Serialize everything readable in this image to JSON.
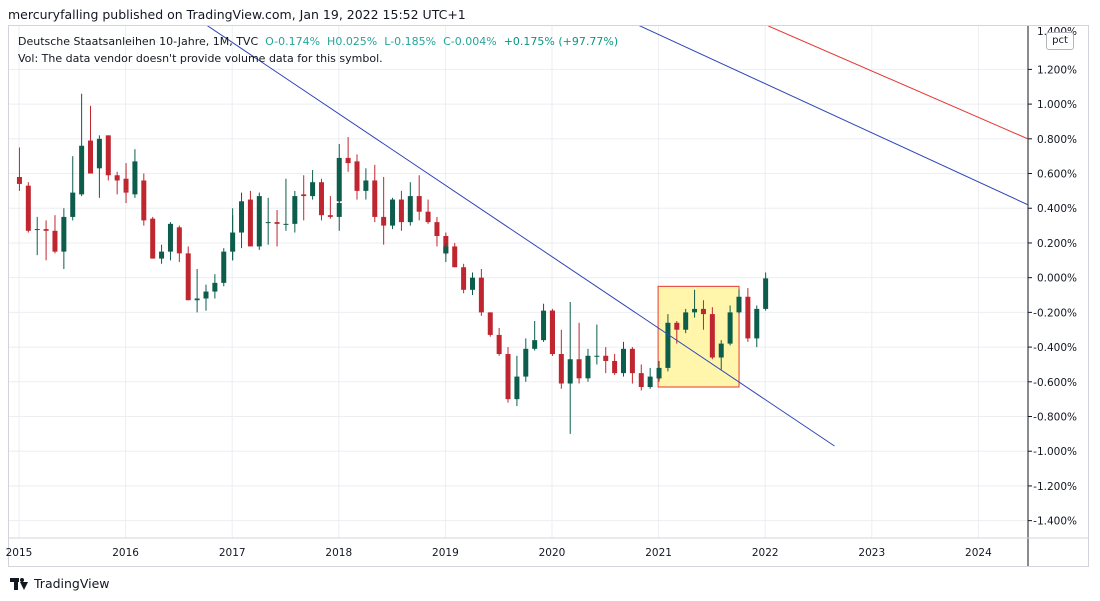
{
  "header": {
    "publish_line": "mercuryfalling published on TradingView.com, Jan 19, 2022 15:52 UTC+1"
  },
  "legend": {
    "symbol": "Deutsche Staatsanleihen 10-Jahre, 1M, TVC",
    "open": "O-0.174%",
    "high": "H0.025%",
    "low": "L-0.185%",
    "close": "C-0.004%",
    "change": "+0.175% (+97.77%)",
    "volume_note": "Vol: The data vendor doesn't provide volume data for this symbol."
  },
  "axis_badge": "pct",
  "footer": {
    "brand": "TradingView"
  },
  "colors": {
    "up": "#0c5d4c",
    "down": "#bf2630",
    "trendline_blue": "#2e46b8",
    "trendline_red": "#e53935",
    "highlight_fill": "#fff59d",
    "highlight_border": "#e53935",
    "grid": "#eceef2"
  },
  "chart_data": {
    "type": "candlestick",
    "timeframe": "1M",
    "ylim": [
      -1.5,
      1.45
    ],
    "y_ticks": [
      1.2,
      1.0,
      0.8,
      0.6,
      0.4,
      0.2,
      0.0,
      -0.2,
      -0.4,
      -0.6,
      -0.8,
      -1.0,
      -1.2,
      -1.4
    ],
    "y_tick_labels": [
      "1.200%",
      "1.000%",
      "0.800%",
      "0.600%",
      "0.400%",
      "0.200%",
      "0.000%",
      "-0.200%",
      "-0.400%",
      "-0.600%",
      "-0.800%",
      "-1.000%",
      "-1.200%",
      "-1.400%"
    ],
    "y_top_partial_label": "1.400%",
    "x_ticks": [
      "2015",
      "2016",
      "2017",
      "2018",
      "2019",
      "2020",
      "2021",
      "2022",
      "2023",
      "2024"
    ],
    "x_range": [
      2015.0,
      2024.75
    ],
    "grid": true,
    "candles": [
      {
        "t": "2015-01",
        "o": 0.58,
        "h": 0.75,
        "l": 0.5,
        "c": 0.54
      },
      {
        "t": "2015-02",
        "o": 0.53,
        "h": 0.55,
        "l": 0.26,
        "c": 0.27
      },
      {
        "t": "2015-03",
        "o": 0.28,
        "h": 0.35,
        "l": 0.13,
        "c": 0.28
      },
      {
        "t": "2015-04",
        "o": 0.28,
        "h": 0.33,
        "l": 0.1,
        "c": 0.27
      },
      {
        "t": "2015-05",
        "o": 0.27,
        "h": 0.36,
        "l": 0.14,
        "c": 0.15
      },
      {
        "t": "2015-06",
        "o": 0.15,
        "h": 0.4,
        "l": 0.05,
        "c": 0.35
      },
      {
        "t": "2015-07",
        "o": 0.35,
        "h": 0.7,
        "l": 0.33,
        "c": 0.49
      },
      {
        "t": "2015-08",
        "o": 0.48,
        "h": 1.06,
        "l": 0.47,
        "c": 0.76
      },
      {
        "t": "2015-09",
        "o": 0.79,
        "h": 0.99,
        "l": 0.61,
        "c": 0.6
      },
      {
        "t": "2015-10",
        "o": 0.63,
        "h": 0.82,
        "l": 0.46,
        "c": 0.8
      },
      {
        "t": "2015-11",
        "o": 0.82,
        "h": 0.82,
        "l": 0.56,
        "c": 0.59
      },
      {
        "t": "2015-12",
        "o": 0.59,
        "h": 0.61,
        "l": 0.48,
        "c": 0.56
      },
      {
        "t": "2015-13",
        "o": 0.57,
        "h": 0.66,
        "l": 0.43,
        "c": 0.5
      },
      {
        "t": "2016-01",
        "o": 0.5,
        "h": 0.62,
        "l": 0.47,
        "c": 0.49
      },
      {
        "t": "2016-02",
        "o": 0.48,
        "h": 0.74,
        "l": 0.46,
        "c": 0.67
      },
      {
        "t": "2016-03",
        "o": 0.56,
        "h": 0.6,
        "l": 0.3,
        "c": 0.33
      },
      {
        "t": "2016-04",
        "o": 0.34,
        "h": 0.35,
        "l": 0.11,
        "c": 0.11
      },
      {
        "t": "2016-05",
        "o": 0.11,
        "h": 0.19,
        "l": 0.08,
        "c": 0.15
      },
      {
        "t": "2016-06",
        "o": 0.15,
        "h": 0.32,
        "l": 0.1,
        "c": 0.31
      },
      {
        "t": "2016-07",
        "o": 0.29,
        "h": 0.3,
        "l": 0.09,
        "c": 0.14
      },
      {
        "t": "2016-08",
        "o": 0.14,
        "h": 0.18,
        "l": -0.13,
        "c": -0.13
      },
      {
        "t": "2016-09",
        "o": -0.13,
        "h": 0.05,
        "l": -0.2,
        "c": -0.12
      },
      {
        "t": "2016-10",
        "o": -0.12,
        "h": -0.04,
        "l": -0.19,
        "c": -0.08
      },
      {
        "t": "2016-11",
        "o": -0.08,
        "h": 0.02,
        "l": -0.12,
        "c": -0.03
      },
      {
        "t": "2016-12",
        "o": -0.03,
        "h": 0.17,
        "l": -0.05,
        "c": 0.15
      },
      {
        "t": "2016-13",
        "o": 0.16,
        "h": 0.4,
        "l": 0.1,
        "c": 0.16
      },
      {
        "t": "2017-01",
        "o": 0.15,
        "h": 0.36,
        "l": 0.1,
        "c": 0.26
      },
      {
        "t": "2017-02",
        "o": 0.26,
        "h": 0.49,
        "l": 0.17,
        "c": 0.44
      },
      {
        "t": "2017-03",
        "o": 0.45,
        "h": 0.5,
        "l": 0.18,
        "c": 0.18
      },
      {
        "t": "2017-04",
        "o": 0.18,
        "h": 0.49,
        "l": 0.16,
        "c": 0.47
      },
      {
        "t": "2017-05",
        "o": 0.32,
        "h": 0.46,
        "l": 0.19,
        "c": 0.32
      },
      {
        "t": "2017-06",
        "o": 0.32,
        "h": 0.39,
        "l": 0.18,
        "c": 0.31
      },
      {
        "t": "2017-07",
        "o": 0.31,
        "h": 0.57,
        "l": 0.27,
        "c": 0.31
      },
      {
        "t": "2017-08",
        "o": 0.31,
        "h": 0.5,
        "l": 0.26,
        "c": 0.47
      },
      {
        "t": "2017-09",
        "o": 0.48,
        "h": 0.59,
        "l": 0.33,
        "c": 0.47
      },
      {
        "t": "2017-10",
        "o": 0.47,
        "h": 0.62,
        "l": 0.45,
        "c": 0.55
      },
      {
        "t": "2017-11",
        "o": 0.55,
        "h": 0.57,
        "l": 0.33,
        "c": 0.36
      },
      {
        "t": "2017-12",
        "o": 0.36,
        "h": 0.47,
        "l": 0.34,
        "c": 0.35
      },
      {
        "t": "2017-13",
        "o": 0.35,
        "h": 0.47,
        "l": 0.27,
        "c": 0.43
      },
      {
        "t": "2018-01",
        "o": 0.44,
        "h": 0.77,
        "l": 0.42,
        "c": 0.69
      },
      {
        "t": "2018-02",
        "o": 0.69,
        "h": 0.81,
        "l": 0.61,
        "c": 0.66
      },
      {
        "t": "2018-03",
        "o": 0.67,
        "h": 0.71,
        "l": 0.45,
        "c": 0.5
      },
      {
        "t": "2018-04",
        "o": 0.5,
        "h": 0.63,
        "l": 0.45,
        "c": 0.56
      },
      {
        "t": "2018-05",
        "o": 0.56,
        "h": 0.65,
        "l": 0.32,
        "c": 0.35
      },
      {
        "t": "2018-06",
        "o": 0.35,
        "h": 0.58,
        "l": 0.19,
        "c": 0.3
      },
      {
        "t": "2018-07",
        "o": 0.3,
        "h": 0.46,
        "l": 0.28,
        "c": 0.45
      },
      {
        "t": "2018-08",
        "o": 0.45,
        "h": 0.5,
        "l": 0.27,
        "c": 0.32
      },
      {
        "t": "2018-09",
        "o": 0.32,
        "h": 0.55,
        "l": 0.3,
        "c": 0.47
      },
      {
        "t": "2018-10",
        "o": 0.47,
        "h": 0.59,
        "l": 0.33,
        "c": 0.38
      },
      {
        "t": "2018-11",
        "o": 0.38,
        "h": 0.45,
        "l": 0.31,
        "c": 0.32
      },
      {
        "t": "2018-12",
        "o": 0.32,
        "h": 0.35,
        "l": 0.18,
        "c": 0.24
      },
      {
        "t": "2018-13",
        "o": 0.24,
        "h": 0.26,
        "l": 0.13,
        "c": 0.14
      },
      {
        "t": "2019-01",
        "o": 0.14,
        "h": 0.2,
        "l": 0.09,
        "c": 0.18
      },
      {
        "t": "2019-02",
        "o": 0.18,
        "h": 0.2,
        "l": 0.06,
        "c": 0.06
      },
      {
        "t": "2019-03",
        "o": 0.06,
        "h": 0.08,
        "l": -0.09,
        "c": -0.07
      },
      {
        "t": "2019-04",
        "o": -0.07,
        "h": 0.03,
        "l": -0.1,
        "c": 0.0
      },
      {
        "t": "2019-05",
        "o": 0.0,
        "h": 0.05,
        "l": -0.22,
        "c": -0.2
      },
      {
        "t": "2019-06",
        "o": -0.2,
        "h": -0.2,
        "l": -0.34,
        "c": -0.33
      },
      {
        "t": "2019-07",
        "o": -0.33,
        "h": -0.29,
        "l": -0.45,
        "c": -0.44
      },
      {
        "t": "2019-08",
        "o": -0.44,
        "h": -0.4,
        "l": -0.72,
        "c": -0.7
      },
      {
        "t": "2019-09",
        "o": -0.7,
        "h": -0.45,
        "l": -0.74,
        "c": -0.57
      },
      {
        "t": "2019-10",
        "o": -0.57,
        "h": -0.35,
        "l": -0.6,
        "c": -0.41
      },
      {
        "t": "2019-11",
        "o": -0.41,
        "h": -0.25,
        "l": -0.42,
        "c": -0.36
      },
      {
        "t": "2019-12",
        "o": -0.36,
        "h": -0.15,
        "l": -0.37,
        "c": -0.19
      },
      {
        "t": "2019-13",
        "o": -0.19,
        "h": -0.19,
        "l": -0.45,
        "c": -0.44
      },
      {
        "t": "2020-01",
        "o": -0.19,
        "h": -0.18,
        "l": -0.45,
        "c": -0.44
      },
      {
        "t": "2020-02",
        "o": -0.44,
        "h": -0.3,
        "l": -0.64,
        "c": -0.61
      },
      {
        "t": "2020-03",
        "o": -0.61,
        "h": -0.14,
        "l": -0.9,
        "c": -0.47
      },
      {
        "t": "2020-04",
        "o": -0.47,
        "h": -0.26,
        "l": -0.61,
        "c": -0.58
      },
      {
        "t": "2020-05",
        "o": -0.58,
        "h": -0.41,
        "l": -0.6,
        "c": -0.45
      },
      {
        "t": "2020-06",
        "o": -0.45,
        "h": -0.27,
        "l": -0.5,
        "c": -0.45
      },
      {
        "t": "2020-07",
        "o": -0.45,
        "h": -0.4,
        "l": -0.55,
        "c": -0.48
      },
      {
        "t": "2020-08",
        "o": -0.48,
        "h": -0.44,
        "l": -0.56,
        "c": -0.55
      },
      {
        "t": "2020-09",
        "o": -0.55,
        "h": -0.37,
        "l": -0.57,
        "c": -0.41
      },
      {
        "t": "2020-10",
        "o": -0.41,
        "h": -0.4,
        "l": -0.61,
        "c": -0.55
      },
      {
        "t": "2020-11",
        "o": -0.55,
        "h": -0.5,
        "l": -0.65,
        "c": -0.63
      },
      {
        "t": "2020-12",
        "o": -0.63,
        "h": -0.52,
        "l": -0.64,
        "c": -0.57
      },
      {
        "t": "2020-13",
        "o": -0.57,
        "h": -0.52,
        "l": -0.6,
        "c": -0.58
      },
      {
        "t": "2021-01",
        "o": -0.58,
        "h": -0.48,
        "l": -0.59,
        "c": -0.52
      },
      {
        "t": "2021-02",
        "o": -0.52,
        "h": -0.21,
        "l": -0.54,
        "c": -0.26
      },
      {
        "t": "2021-03",
        "o": -0.26,
        "h": -0.25,
        "l": -0.38,
        "c": -0.3
      },
      {
        "t": "2021-04",
        "o": -0.3,
        "h": -0.18,
        "l": -0.32,
        "c": -0.2
      },
      {
        "t": "2021-05",
        "o": -0.2,
        "h": -0.07,
        "l": -0.23,
        "c": -0.18
      },
      {
        "t": "2021-06",
        "o": -0.18,
        "h": -0.13,
        "l": -0.3,
        "c": -0.21
      },
      {
        "t": "2021-07",
        "o": -0.21,
        "h": -0.17,
        "l": -0.47,
        "c": -0.46
      },
      {
        "t": "2021-08",
        "o": -0.46,
        "h": -0.36,
        "l": -0.53,
        "c": -0.38
      },
      {
        "t": "2021-09",
        "o": -0.38,
        "h": -0.16,
        "l": -0.39,
        "c": -0.2
      },
      {
        "t": "2021-10",
        "o": -0.2,
        "h": -0.07,
        "l": -0.21,
        "c": -0.11
      },
      {
        "t": "2021-11",
        "o": -0.11,
        "h": -0.06,
        "l": -0.37,
        "c": -0.35
      },
      {
        "t": "2021-12",
        "o": -0.35,
        "h": -0.16,
        "l": -0.4,
        "c": -0.18
      },
      {
        "t": "2022-01",
        "o": -0.18,
        "h": 0.03,
        "l": -0.19,
        "c": -0.004
      }
    ],
    "annotations": [
      {
        "type": "trendline",
        "color": "#2e46b8",
        "from": {
          "x": 2016.65,
          "y": 1.5
        },
        "to": {
          "x": 2022.65,
          "y": -0.97
        }
      },
      {
        "type": "trendline",
        "color": "#2e46b8",
        "from": {
          "x": 2020.65,
          "y": 1.5
        },
        "to": {
          "x": 2024.5,
          "y": 0.41
        }
      },
      {
        "type": "trendline",
        "color": "#e53935",
        "from": {
          "x": 2022.03,
          "y": 1.45
        },
        "to": {
          "x": 2024.5,
          "y": 0.79
        }
      },
      {
        "type": "rectangle",
        "fill": "#fff59d",
        "border": "#e53935",
        "x0": 2021.0,
        "x1": 2021.75,
        "y0": -0.63,
        "y1": -0.05
      }
    ]
  }
}
